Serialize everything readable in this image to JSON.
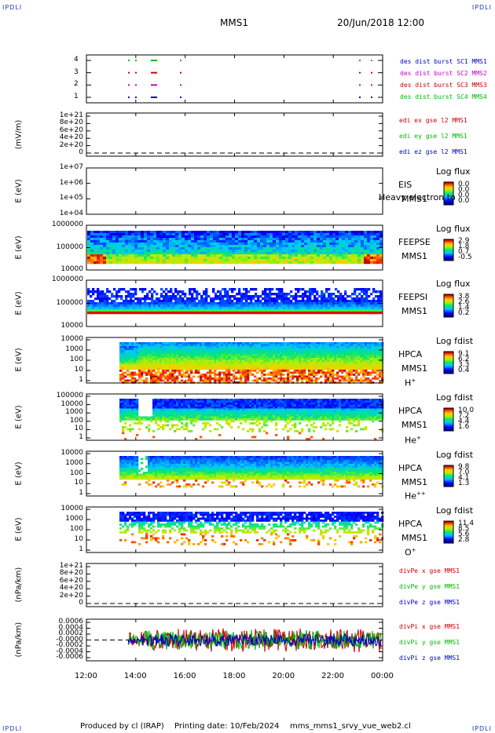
{
  "corners": {
    "tl": "IPDLI",
    "tr": "IPDLI",
    "bl": "IPDLI",
    "br": "IPDLI"
  },
  "header": {
    "title": "MMS1",
    "date": "20/Jun/2018 12:00"
  },
  "footer": {
    "produced": "Produced by cl (IRAP)",
    "printing": "Printing date: 10/Feb/2024",
    "file": "mms_mms1_srvy_vue_web2.cl"
  },
  "x_ticks": [
    "12:00",
    "14:00",
    "16:00",
    "18:00",
    "20:00",
    "22:00",
    "00:00"
  ],
  "colors": {
    "mms1": "#0000cc",
    "mms2": "#cc00cc",
    "mms3": "#cc0000",
    "mms4": "#00bb00",
    "x": "#cc0000",
    "y": "#00bb00",
    "z": "#0000cc"
  },
  "chart_data": [
    {
      "type": "scatter",
      "name": "burst_availability",
      "ylim": [
        0.5,
        4.5
      ],
      "yticks": [
        "4",
        "3",
        "2",
        "1"
      ],
      "legend": [
        "des dist burst SC1 MMS1",
        "des dist burst SC2 MMS2",
        "des dist burst SC3 MMS3",
        "des dist burst SC4 MMS4"
      ]
    },
    {
      "type": "line",
      "name": "edi_e",
      "ylabel": "(mV/m)",
      "yticks": [
        "1e+21",
        "8e+20",
        "6e+20",
        "4e+20",
        "2e+20",
        "0"
      ],
      "legend": [
        "edi ex gse l2 MMS1",
        "edi ey gse l2 MMS1",
        "edi ez gse l2 MMS1"
      ]
    },
    {
      "type": "heatmap",
      "name": "eis",
      "ylabel": "E (eV)",
      "yticks": [
        "1e+07",
        "1e+06",
        "1e+05",
        "1e+04"
      ],
      "right_labels": [
        "EIS",
        "MMS1"
      ],
      "overlay": "Heavy electron to",
      "cbar_title": "Log flux",
      "cbar_ticks": [
        "0.0",
        "0.0",
        "0.0",
        "0.0"
      ]
    },
    {
      "type": "heatmap",
      "name": "feeps_e",
      "ylabel": "E (eV)",
      "yticks": [
        "1000000",
        "100000",
        "10000"
      ],
      "right_labels": [
        "FEEPSE",
        "MMS1"
      ],
      "cbar_title": "Log flux",
      "cbar_ticks": [
        "2.9",
        "1.8",
        "0.7",
        "-0.5"
      ]
    },
    {
      "type": "heatmap",
      "name": "feeps_i",
      "ylabel": "E (eV)",
      "yticks": [
        "1000000",
        "100000",
        "10000"
      ],
      "right_labels": [
        "FEEPSI",
        "MMS1"
      ],
      "cbar_title": "Log flux",
      "cbar_ticks": [
        "3.8",
        "2.6",
        "1.4",
        "0.2"
      ]
    },
    {
      "type": "heatmap",
      "name": "hpca_h",
      "ylabel": "E (eV)",
      "yticks": [
        "10000",
        "1000",
        "100",
        "10",
        "1"
      ],
      "right_labels": [
        "HPCA",
        "MMS1"
      ],
      "species": "H",
      "charge": "+",
      "cbar_title": "Log fdist",
      "cbar_ticks": [
        "9.1",
        "6.2",
        "3.3",
        "0.4"
      ]
    },
    {
      "type": "heatmap",
      "name": "hpca_he",
      "ylabel": "E (eV)",
      "yticks": [
        "100000",
        "10000",
        "1000",
        "100",
        "10",
        "1"
      ],
      "right_labels": [
        "HPCA",
        "MMS1"
      ],
      "species": "He",
      "charge": "+",
      "cbar_title": "Log fdist",
      "cbar_ticks": [
        "10.0",
        "7.2",
        "4.4",
        "1.6"
      ]
    },
    {
      "type": "heatmap",
      "name": "hpca_hepp",
      "ylabel": "E (eV)",
      "yticks": [
        "10000",
        "1000",
        "100",
        "10",
        "1"
      ],
      "right_labels": [
        "HPCA",
        "MMS1"
      ],
      "species": "He",
      "charge": "++",
      "cbar_title": "Log fdist",
      "cbar_ticks": [
        "9.8",
        "7.0",
        "4.1",
        "1.3"
      ]
    },
    {
      "type": "heatmap",
      "name": "hpca_o",
      "ylabel": "E (eV)",
      "yticks": [
        "10000",
        "1000",
        "100",
        "10",
        "1"
      ],
      "right_labels": [
        "HPCA",
        "MMS1"
      ],
      "species": "O",
      "charge": "+",
      "cbar_title": "Log fdist",
      "cbar_ticks": [
        "11.4",
        "8.5",
        "5.6",
        "2.8"
      ]
    },
    {
      "type": "line",
      "name": "divpe",
      "ylabel": "(nPa/km)",
      "yticks": [
        "1e+21",
        "8e+20",
        "6e+20",
        "4e+20",
        "2e+20",
        "0"
      ],
      "legend": [
        "divPe x gse MMS1",
        "divPe y gse MMS1",
        "divPe z gse MMS1"
      ]
    },
    {
      "type": "line",
      "name": "divpi",
      "ylabel": "(nPa/km)",
      "ylim": [
        -0.0007,
        0.0007
      ],
      "yticks": [
        "0.0006",
        "0.0004",
        "0.0002",
        "-0.0000",
        "-0.0002",
        "-0.0004",
        "-0.0006"
      ],
      "legend": [
        "divPi x gse MMS1",
        "divPi y gse MMS1",
        "divPi z gse MMS1"
      ]
    }
  ]
}
